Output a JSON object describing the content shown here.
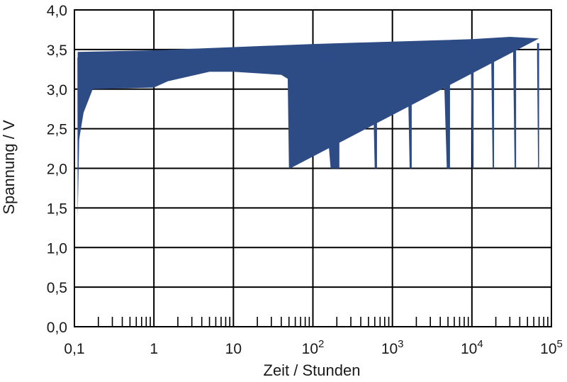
{
  "chart_data": {
    "type": "line",
    "xlabel": "Zeit / Stunden",
    "ylabel": "Spannung / V",
    "x_scale": "log",
    "xlim": [
      0.1,
      100000
    ],
    "ylim": [
      0.0,
      4.0
    ],
    "grid": true,
    "x_ticks": [
      {
        "value": 0.1,
        "label": "0,1"
      },
      {
        "value": 1,
        "label": "1"
      },
      {
        "value": 10,
        "label": "10"
      },
      {
        "value": 100,
        "base": "10",
        "exp": "2"
      },
      {
        "value": 1000,
        "base": "10",
        "exp": "3"
      },
      {
        "value": 10000,
        "base": "10",
        "exp": "4"
      },
      {
        "value": 100000,
        "base": "10",
        "exp": "5"
      }
    ],
    "y_ticks": [
      {
        "value": 0.0,
        "label": "0,0"
      },
      {
        "value": 0.5,
        "label": "0,5"
      },
      {
        "value": 1.0,
        "label": "1,0"
      },
      {
        "value": 1.5,
        "label": "1,5"
      },
      {
        "value": 2.0,
        "label": "2,0"
      },
      {
        "value": 2.5,
        "label": "2,5"
      },
      {
        "value": 3.0,
        "label": "3,0"
      },
      {
        "value": 3.5,
        "label": "3,5"
      },
      {
        "value": 4.0,
        "label": "4,0"
      }
    ],
    "series_color": "#2d4b85",
    "envelope": {
      "upper": [
        [
          0.11,
          3.47
        ],
        [
          1,
          3.49
        ],
        [
          10,
          3.53
        ],
        [
          100,
          3.57
        ],
        [
          1000,
          3.6
        ],
        [
          10000,
          3.63
        ],
        [
          30000,
          3.66
        ],
        [
          70000,
          3.64
        ]
      ],
      "lower": [
        [
          0.11,
          2.25
        ],
        [
          0.13,
          2.7
        ],
        [
          0.17,
          3.0
        ],
        [
          1,
          3.02
        ],
        [
          1.5,
          3.1
        ],
        [
          5,
          3.22
        ],
        [
          10,
          3.22
        ],
        [
          40,
          3.18
        ],
        [
          50,
          3.12
        ],
        [
          52,
          2.0
        ]
      ]
    },
    "initial_dip": [
      [
        0.11,
        1.38
      ],
      [
        0.115,
        2.4
      ],
      [
        0.13,
        2.7
      ]
    ],
    "discharge_drops": [
      {
        "t_start": 48,
        "t_end": 52,
        "v_end": 2.0
      },
      {
        "t_start": 130,
        "t_end": 215,
        "v_end": 2.0
      },
      {
        "t_start": 560,
        "t_end": 640,
        "v_end": 2.0
      },
      {
        "t_start": 1550,
        "t_end": 1750,
        "v_end": 2.0
      },
      {
        "t_start": 4400,
        "t_end": 5300,
        "v_end": 2.0
      },
      {
        "t_start": 9700,
        "t_end": 10500,
        "v_end": 2.0
      },
      {
        "t_start": 17500,
        "t_end": 19000,
        "v_end": 2.0
      },
      {
        "t_start": 33000,
        "t_end": 36000,
        "v_end": 2.0
      },
      {
        "t_start": 66000,
        "t_end": 70000,
        "v_end": 2.0
      }
    ]
  }
}
